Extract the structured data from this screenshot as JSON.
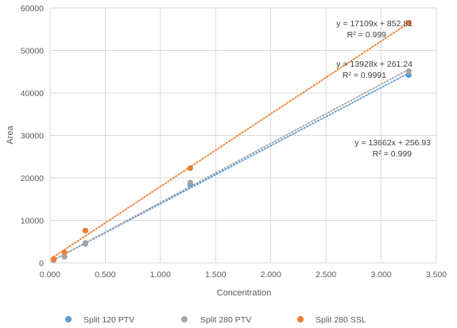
{
  "chart_data": {
    "type": "scatter",
    "xlabel": "Concentration",
    "ylabel": "Area",
    "xlim": [
      0,
      3.5
    ],
    "ylim": [
      0,
      60000
    ],
    "x_ticks": [
      "0.000",
      "0.500",
      "1.000",
      "1.500",
      "2.000",
      "2.500",
      "3.000",
      "3.500"
    ],
    "y_ticks": [
      "0",
      "10000",
      "20000",
      "30000",
      "40000",
      "50000",
      "60000"
    ],
    "grid": "vertical and horizontal",
    "legend_position": "bottom",
    "series": [
      {
        "name": "Split 120 PTV",
        "color": "#5B9BD5",
        "x": [
          0.032,
          0.13,
          0.32,
          1.27,
          3.25
        ],
        "y": [
          600,
          1450,
          4500,
          18500,
          44200
        ],
        "trendline": {
          "slope": 13662,
          "intercept": 256.93
        },
        "equation": "y = 13662x + 256.93",
        "r2": "R² = 0.999"
      },
      {
        "name": "Split 280 PTV",
        "color": "#A5A5A5",
        "x": [
          0.032,
          0.13,
          0.32,
          1.27,
          3.25
        ],
        "y": [
          650,
          1500,
          4700,
          18900,
          45100
        ],
        "trendline": {
          "slope": 13928,
          "intercept": 261.24
        },
        "equation": "y = 13928x + 261.24",
        "r2": "R² = 0.9991"
      },
      {
        "name": "Split 280 SSL",
        "color": "#ED7D31",
        "x": [
          0.032,
          0.13,
          0.32,
          1.27,
          3.25
        ],
        "y": [
          900,
          2500,
          7600,
          22300,
          56500
        ],
        "trendline": {
          "slope": 17109,
          "intercept": 852.81
        },
        "equation": "y = 17109x + 852.81",
        "r2": "R² = 0.999"
      }
    ]
  }
}
